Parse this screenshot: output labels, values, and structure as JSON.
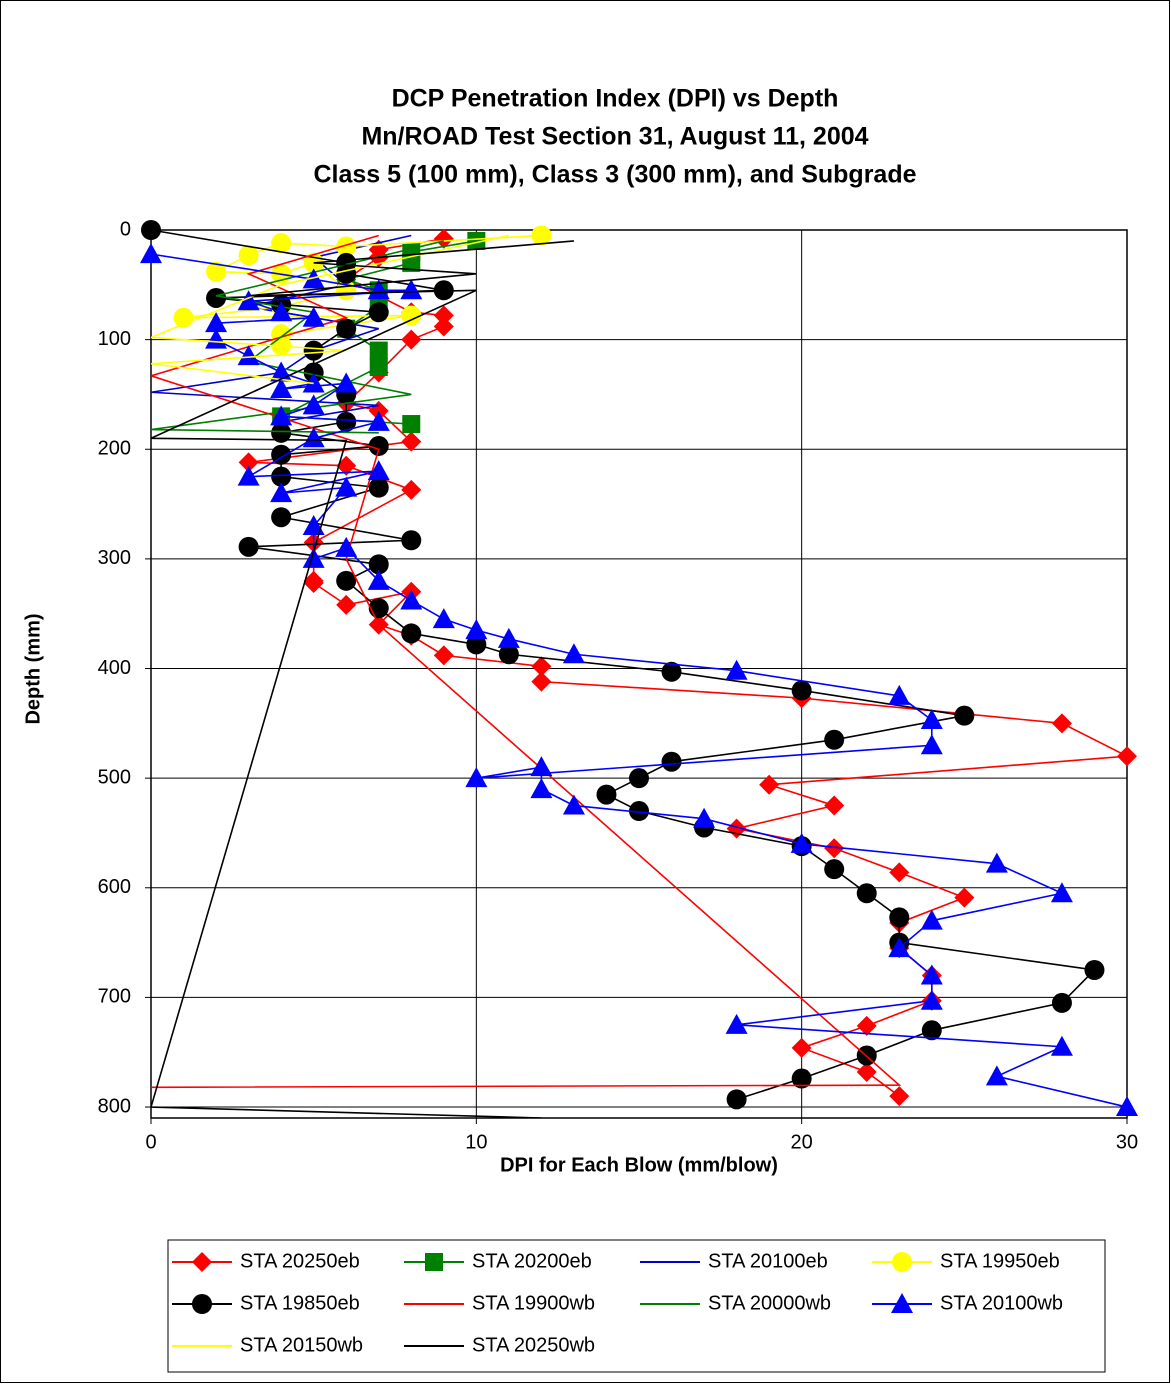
{
  "chart_data": {
    "type": "line",
    "title": [
      "DCP Penetration Index (DPI) vs Depth",
      "Mn/ROAD Test Section 31, August 11, 2004",
      "Class 5 (100 mm), Class 3 (300 mm), and Subgrade"
    ],
    "xlabel": "DPI for Each Blow (mm/blow)",
    "ylabel": "Depth (mm)",
    "xlim": [
      0,
      30
    ],
    "xticks": [
      0,
      10,
      20,
      30
    ],
    "ylim": [
      0,
      810
    ],
    "yticks": [
      0,
      100,
      200,
      300,
      400,
      500,
      600,
      700,
      800
    ],
    "y_inverted": true,
    "grid": true,
    "legend": "bottom",
    "series": [
      {
        "name": "STA 20250eb",
        "color": "#ff0000",
        "marker": "diamond",
        "x": [
          9,
          7,
          7,
          6,
          8,
          9,
          9,
          8,
          7,
          6,
          7,
          8,
          3,
          6,
          8,
          5,
          5,
          5,
          6,
          8,
          7,
          8,
          9,
          12,
          12,
          20,
          28,
          30,
          19,
          21,
          18,
          21,
          23,
          25,
          23,
          23,
          24,
          24,
          22,
          20,
          22,
          23
        ],
        "values": [
          8,
          18,
          25,
          45,
          75,
          78,
          88,
          100,
          130,
          158,
          165,
          193,
          212,
          215,
          237,
          285,
          320,
          322,
          342,
          330,
          360,
          370,
          388,
          398,
          412,
          427,
          450,
          480,
          506,
          525,
          546,
          564,
          586,
          609,
          632,
          655,
          680,
          703,
          726,
          746,
          768,
          790
        ]
      },
      {
        "name": "STA 20200eb",
        "color": "#008000",
        "marker": "square",
        "x": [
          10,
          8,
          8,
          6,
          7,
          7,
          6,
          7,
          7,
          4,
          8
        ],
        "values": [
          10,
          20,
          30,
          45,
          55,
          70,
          90,
          110,
          125,
          170,
          177
        ]
      },
      {
        "name": "STA 20100eb",
        "color": "#0000cc",
        "marker": "none",
        "x": [
          8,
          5,
          6,
          3,
          7,
          5,
          4,
          0,
          7,
          4
        ],
        "values": [
          5,
          25,
          50,
          70,
          90,
          110,
          130,
          148,
          160,
          175
        ]
      },
      {
        "name": "STA 19950eb",
        "color": "#ffff00",
        "marker": "circle",
        "x": [
          12,
          6,
          4,
          3,
          2,
          4,
          5,
          6,
          4,
          1,
          8,
          4,
          4
        ],
        "values": [
          5,
          15,
          12,
          23,
          38,
          40,
          30,
          55,
          70,
          80,
          78,
          95,
          105
        ]
      },
      {
        "name": "STA 19850eb",
        "color": "#000000",
        "marker": "circle",
        "x": [
          0,
          6,
          6,
          9,
          2,
          4,
          7,
          6,
          5,
          5,
          6,
          6,
          4,
          7,
          4,
          4,
          7,
          4,
          8,
          3,
          7,
          6,
          7,
          8,
          10,
          11,
          16,
          20,
          25,
          21,
          16,
          15,
          14,
          15,
          17,
          20,
          21,
          22,
          23,
          23,
          29,
          28,
          24,
          22,
          20,
          18
        ],
        "values": [
          0,
          30,
          40,
          55,
          62,
          68,
          75,
          90,
          110,
          130,
          150,
          175,
          185,
          197,
          205,
          225,
          235,
          262,
          283,
          289,
          305,
          320,
          345,
          368,
          378,
          387,
          403,
          420,
          443,
          465,
          485,
          500,
          515,
          530,
          545,
          562,
          583,
          605,
          627,
          650,
          675,
          705,
          730,
          753,
          774,
          793
        ]
      },
      {
        "name": "STA 19900wb",
        "color": "#ff0000",
        "marker": "none",
        "x": [
          7,
          3,
          6,
          0,
          7,
          6,
          7,
          23,
          0
        ],
        "values": [
          5,
          40,
          80,
          133,
          200,
          300,
          360,
          780,
          782
        ]
      },
      {
        "name": "STA 20000wb",
        "color": "#008000",
        "marker": "none",
        "x": [
          9,
          2,
          5,
          3,
          8,
          0,
          7
        ],
        "values": [
          10,
          60,
          75,
          120,
          150,
          182,
          185
        ]
      },
      {
        "name": "STA 20100wb",
        "color": "#0000ff",
        "marker": "triangle",
        "x": [
          0,
          5,
          7,
          8,
          3,
          4,
          5,
          2,
          2,
          3,
          4,
          5,
          4,
          6,
          5,
          4,
          7,
          5,
          3,
          7,
          4,
          6,
          5,
          5,
          6,
          7,
          8,
          9,
          10,
          11,
          13,
          18,
          23,
          24,
          24,
          10,
          12,
          12,
          13,
          17,
          20,
          26,
          28,
          24,
          23,
          24,
          24,
          18,
          28,
          26,
          30
        ],
        "values": [
          22,
          45,
          55,
          55,
          65,
          75,
          80,
          85,
          100,
          115,
          130,
          140,
          145,
          140,
          160,
          170,
          175,
          190,
          225,
          220,
          240,
          235,
          270,
          300,
          290,
          320,
          338,
          355,
          365,
          373,
          387,
          402,
          425,
          447,
          470,
          500,
          490,
          510,
          525,
          537,
          560,
          578,
          605,
          630,
          655,
          680,
          703,
          725,
          745,
          772,
          800
        ]
      },
      {
        "name": "STA 20150wb",
        "color": "#ffff00",
        "marker": "none",
        "x": [
          11,
          4,
          0,
          6,
          0,
          5
        ],
        "values": [
          5,
          50,
          98,
          110,
          122,
          140
        ]
      },
      {
        "name": "STA 20250wb",
        "color": "#000000",
        "marker": "none",
        "x": [
          13,
          5,
          10,
          3,
          10,
          0,
          6,
          0,
          12
        ],
        "values": [
          10,
          30,
          40,
          60,
          55,
          190,
          192,
          800,
          810
        ]
      }
    ]
  }
}
